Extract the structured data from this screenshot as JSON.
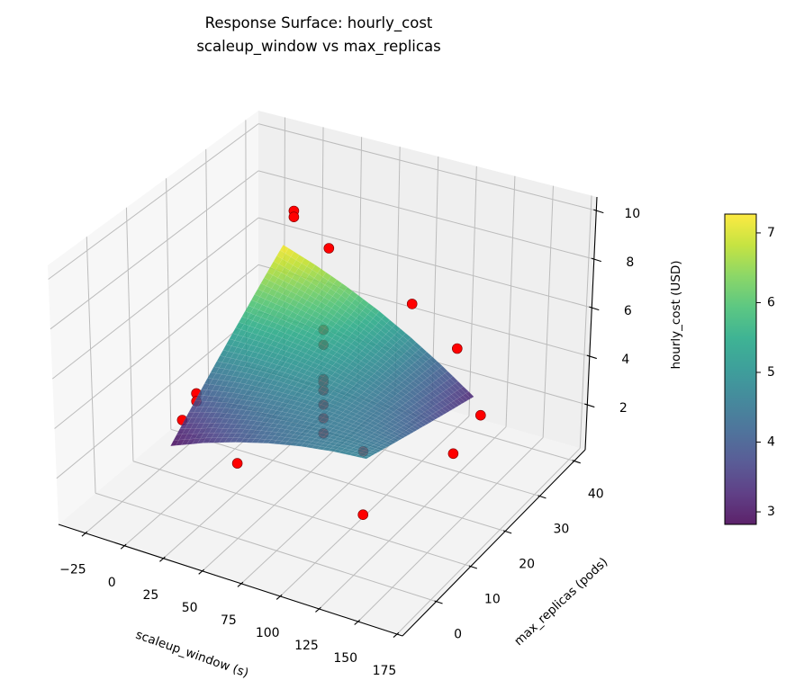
{
  "chart_data": {
    "type": "surface3d",
    "title": "Response Surface: hourly_cost",
    "subtitle": "scaleup_window vs max_replicas",
    "xlabel": "scaleup_window (s)",
    "ylabel": "max_replicas (pods)",
    "zlabel": "hourly_cost (USD)",
    "xlim": [
      -42.3,
      178.5
    ],
    "ylim": [
      -9.8,
      43.2
    ],
    "zlim": [
      0.15,
      10.56
    ],
    "xticks": [
      -25,
      0,
      25,
      50,
      75,
      100,
      125,
      150,
      175
    ],
    "xtick_labels": [
      "−25",
      "0",
      "25",
      "50",
      "75",
      "100",
      "125",
      "150",
      "175"
    ],
    "yticks": [
      0,
      10,
      20,
      30,
      40
    ],
    "ytick_labels": [
      "0",
      "10",
      "20",
      "30",
      "40"
    ],
    "zticks": [
      2,
      4,
      6,
      8,
      10
    ],
    "ztick_labels": [
      "2",
      "4",
      "6",
      "8",
      "10"
    ],
    "grid": true,
    "colormap": "viridis",
    "colorbar": {
      "range": [
        2.82,
        7.27
      ],
      "ticks": [
        3,
        4,
        5,
        6,
        7
      ],
      "tick_labels": [
        "3",
        "4",
        "5",
        "6",
        "7"
      ],
      "placement": "right"
    },
    "surface": {
      "x": [
        5,
        26,
        47,
        68,
        89,
        110,
        131
      ],
      "y": [
        1,
        6,
        11,
        16,
        21,
        26,
        31
      ],
      "z": [
        [
          2.85,
          3.37,
          3.8,
          4.15,
          4.42,
          4.6,
          4.7
        ],
        [
          3.58,
          3.94,
          4.21,
          4.39,
          4.49,
          4.51,
          4.45
        ],
        [
          4.32,
          4.51,
          4.61,
          4.63,
          4.57,
          4.43,
          4.2
        ],
        [
          5.05,
          5.08,
          5.02,
          4.88,
          4.65,
          4.34,
          3.95
        ],
        [
          5.78,
          5.64,
          5.42,
          5.12,
          4.73,
          4.26,
          3.7
        ],
        [
          6.52,
          6.21,
          5.83,
          5.36,
          4.81,
          4.17,
          3.45
        ],
        [
          7.25,
          6.78,
          6.23,
          5.6,
          4.88,
          4.08,
          3.2
        ]
      ]
    },
    "point_color": "#ff0000",
    "points": [
      {
        "x": 7.9,
        "y": 32.6,
        "z": 8.51
      },
      {
        "x": 7.9,
        "y": 32.6,
        "z": 8.26
      },
      {
        "x": 30.8,
        "y": 32.6,
        "z": 7.35
      },
      {
        "x": 85.5,
        "y": 32.6,
        "z": 5.99
      },
      {
        "x": 115.6,
        "y": 32.6,
        "z": 4.68
      },
      {
        "x": 132.1,
        "y": 32.6,
        "z": 2.24
      },
      {
        "x": 138.9,
        "y": 22,
        "z": 2.26
      },
      {
        "x": 92.4,
        "y": 16.7,
        "z": 2.22
      },
      {
        "x": 129.3,
        "y": 0.8,
        "z": 2.5
      },
      {
        "x": 48.5,
        "y": 0.8,
        "z": 3.01
      },
      {
        "x": 13.5,
        "y": 0.8,
        "z": 4.08
      },
      {
        "x": 3.2,
        "y": 8.75,
        "z": 3.95
      },
      {
        "x": 3.2,
        "y": 8.75,
        "z": 3.63
      },
      {
        "x": 68,
        "y": 16,
        "z": 6.78
      },
      {
        "x": 68,
        "y": 16,
        "z": 6.17
      },
      {
        "x": 68,
        "y": 16,
        "z": 4.78
      },
      {
        "x": 68,
        "y": 16,
        "z": 4.66
      },
      {
        "x": 68,
        "y": 16,
        "z": 4.33
      },
      {
        "x": 68,
        "y": 16,
        "z": 3.75
      },
      {
        "x": 68,
        "y": 16,
        "z": 3.2
      },
      {
        "x": 68,
        "y": 16,
        "z": 2.59
      }
    ]
  }
}
